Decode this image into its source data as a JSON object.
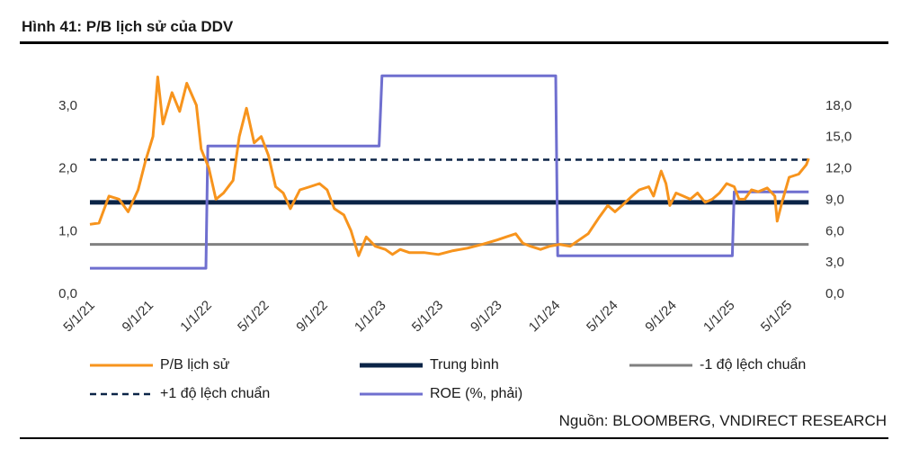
{
  "figure": {
    "title": "Hình 41: P/B lịch sử của DDV",
    "source": "Nguồn: BLOOMBERG, VNDIRECT RESEARCH"
  },
  "chart_data": {
    "type": "line",
    "title": "Hình 41: P/B lịch sử của DDV",
    "x_ticks": [
      "5/1/21",
      "9/1/21",
      "1/1/22",
      "5/1/22",
      "9/1/22",
      "1/1/23",
      "5/1/23",
      "9/1/23",
      "1/1/24",
      "5/1/24",
      "9/1/24",
      "1/1/25",
      "5/1/25"
    ],
    "x_range": [
      "2021-05-01",
      "2025-06-20"
    ],
    "y_left": {
      "ticks": [
        "0,0",
        "1,0",
        "2,0",
        "3,0"
      ],
      "range": [
        0,
        3.5
      ]
    },
    "y_right": {
      "ticks": [
        "0,0",
        "3,0",
        "6,0",
        "9,0",
        "12,0",
        "15,0",
        "18,0"
      ],
      "range": [
        0,
        21
      ]
    },
    "series": [
      {
        "name": "P/B lịch sử",
        "axis": "left",
        "color": "#F7941D",
        "style": "solid",
        "points": [
          [
            "2021-05-01",
            1.1
          ],
          [
            "2021-05-20",
            1.12
          ],
          [
            "2021-06-10",
            1.55
          ],
          [
            "2021-07-01",
            1.5
          ],
          [
            "2021-07-20",
            1.3
          ],
          [
            "2021-08-10",
            1.65
          ],
          [
            "2021-08-25",
            2.1
          ],
          [
            "2021-09-10",
            2.5
          ],
          [
            "2021-09-20",
            3.45
          ],
          [
            "2021-10-01",
            2.7
          ],
          [
            "2021-10-20",
            3.2
          ],
          [
            "2021-11-05",
            2.9
          ],
          [
            "2021-11-20",
            3.35
          ],
          [
            "2021-12-10",
            3.0
          ],
          [
            "2021-12-20",
            2.3
          ],
          [
            "2022-01-05",
            2.0
          ],
          [
            "2022-01-20",
            1.5
          ],
          [
            "2022-02-05",
            1.6
          ],
          [
            "2022-02-25",
            1.8
          ],
          [
            "2022-03-10",
            2.5
          ],
          [
            "2022-03-25",
            2.95
          ],
          [
            "2022-04-10",
            2.4
          ],
          [
            "2022-04-25",
            2.5
          ],
          [
            "2022-05-10",
            2.2
          ],
          [
            "2022-05-25",
            1.7
          ],
          [
            "2022-06-10",
            1.6
          ],
          [
            "2022-06-25",
            1.35
          ],
          [
            "2022-07-15",
            1.65
          ],
          [
            "2022-08-05",
            1.7
          ],
          [
            "2022-08-25",
            1.75
          ],
          [
            "2022-09-10",
            1.65
          ],
          [
            "2022-09-25",
            1.35
          ],
          [
            "2022-10-15",
            1.25
          ],
          [
            "2022-10-30",
            1.0
          ],
          [
            "2022-11-15",
            0.6
          ],
          [
            "2022-12-01",
            0.9
          ],
          [
            "2022-12-20",
            0.75
          ],
          [
            "2023-01-10",
            0.7
          ],
          [
            "2023-01-25",
            0.62
          ],
          [
            "2023-02-10",
            0.7
          ],
          [
            "2023-03-01",
            0.65
          ],
          [
            "2023-04-01",
            0.65
          ],
          [
            "2023-05-01",
            0.62
          ],
          [
            "2023-06-01",
            0.68
          ],
          [
            "2023-07-01",
            0.72
          ],
          [
            "2023-08-01",
            0.78
          ],
          [
            "2023-09-01",
            0.85
          ],
          [
            "2023-09-20",
            0.9
          ],
          [
            "2023-10-10",
            0.95
          ],
          [
            "2023-10-25",
            0.8
          ],
          [
            "2023-11-10",
            0.75
          ],
          [
            "2023-12-01",
            0.7
          ],
          [
            "2023-12-20",
            0.75
          ],
          [
            "2024-01-10",
            0.78
          ],
          [
            "2024-02-01",
            0.75
          ],
          [
            "2024-02-20",
            0.85
          ],
          [
            "2024-03-10",
            0.95
          ],
          [
            "2024-04-01",
            1.2
          ],
          [
            "2024-04-20",
            1.4
          ],
          [
            "2024-05-05",
            1.3
          ],
          [
            "2024-05-20",
            1.4
          ],
          [
            "2024-06-10",
            1.55
          ],
          [
            "2024-06-25",
            1.65
          ],
          [
            "2024-07-15",
            1.7
          ],
          [
            "2024-07-25",
            1.55
          ],
          [
            "2024-08-10",
            1.95
          ],
          [
            "2024-08-20",
            1.75
          ],
          [
            "2024-08-28",
            1.4
          ],
          [
            "2024-09-10",
            1.6
          ],
          [
            "2024-09-25",
            1.55
          ],
          [
            "2024-10-10",
            1.5
          ],
          [
            "2024-10-25",
            1.6
          ],
          [
            "2024-11-10",
            1.45
          ],
          [
            "2024-11-25",
            1.5
          ],
          [
            "2024-12-10",
            1.6
          ],
          [
            "2024-12-25",
            1.75
          ],
          [
            "2025-01-10",
            1.7
          ],
          [
            "2025-01-20",
            1.5
          ],
          [
            "2025-02-01",
            1.5
          ],
          [
            "2025-02-15",
            1.65
          ],
          [
            "2025-03-01",
            1.62
          ],
          [
            "2025-03-20",
            1.68
          ],
          [
            "2025-04-05",
            1.55
          ],
          [
            "2025-04-10",
            1.15
          ],
          [
            "2025-04-20",
            1.45
          ],
          [
            "2025-05-05",
            1.85
          ],
          [
            "2025-05-25",
            1.9
          ],
          [
            "2025-06-10",
            2.05
          ],
          [
            "2025-06-15",
            2.15
          ]
        ]
      },
      {
        "name": "Trung bình",
        "axis": "left",
        "color": "#0B2447",
        "style": "thick",
        "points": [
          [
            "2021-05-01",
            1.45
          ],
          [
            "2025-06-15",
            1.45
          ]
        ]
      },
      {
        "name": "-1 độ lệch chuẩn",
        "axis": "left",
        "color": "#808080",
        "style": "solid",
        "points": [
          [
            "2021-05-01",
            0.78
          ],
          [
            "2025-06-15",
            0.78
          ]
        ]
      },
      {
        "name": "+1 độ lệch chuẩn",
        "axis": "left",
        "color": "#0B2447",
        "style": "dashed",
        "points": [
          [
            "2021-05-01",
            2.13
          ],
          [
            "2025-06-15",
            2.13
          ]
        ]
      },
      {
        "name": "ROE (%, phải)",
        "axis": "right",
        "color": "#6F6FCF",
        "style": "solid",
        "points": [
          [
            "2021-05-01",
            2.4
          ],
          [
            "2021-12-30",
            2.4
          ],
          [
            "2022-01-03",
            14.1
          ],
          [
            "2022-12-28",
            14.1
          ],
          [
            "2023-01-03",
            20.8
          ],
          [
            "2024-01-02",
            20.8
          ],
          [
            "2024-01-06",
            3.6
          ],
          [
            "2025-01-06",
            3.6
          ],
          [
            "2025-01-10",
            9.7
          ],
          [
            "2025-06-15",
            9.7
          ]
        ]
      }
    ],
    "legend_placement": "bottom",
    "grid": false
  },
  "legend": [
    {
      "label": "P/B lịch sử"
    },
    {
      "label": "Trung bình"
    },
    {
      "label": "-1 độ lệch chuẩn"
    },
    {
      "label": "+1 độ lệch chuẩn"
    },
    {
      "label": "ROE (%, phải)"
    }
  ]
}
